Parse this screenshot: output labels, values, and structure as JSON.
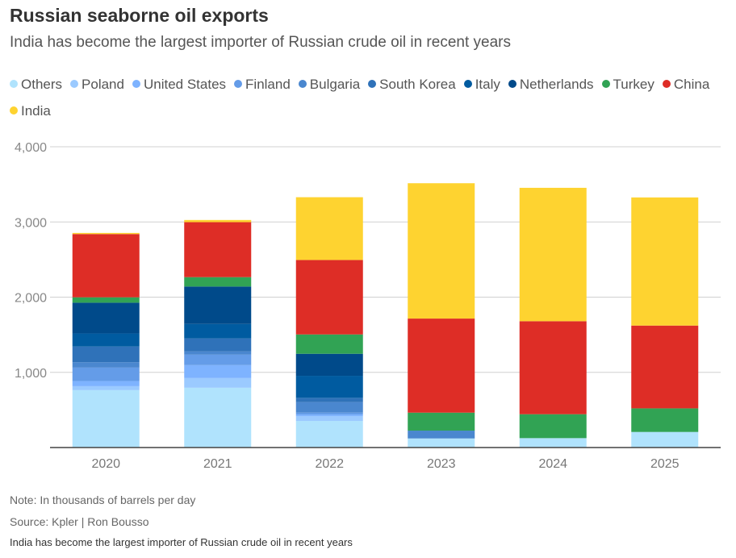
{
  "header": {
    "title": "Russian seaborne oil exports",
    "subtitle": "India has become the largest importer of Russian crude oil in recent years"
  },
  "footer": {
    "note": "Note: In thousands of barrels per day",
    "source": "Source: Kpler | Ron Bousso",
    "caption": "India has become the largest importer of Russian crude oil in recent years"
  },
  "chart_data": {
    "type": "bar",
    "stacked": true,
    "title": "Russian seaborne oil exports",
    "subtitle": "India has become the largest importer of Russian crude oil in recent years",
    "ylim": [
      0,
      4000
    ],
    "yticks": [
      "1,000",
      "2,000",
      "3,000",
      "4,000"
    ],
    "ytick_values": [
      1000,
      2000,
      3000,
      4000
    ],
    "grid": true,
    "legend_position": "top",
    "categories": [
      "2020",
      "2021",
      "2022",
      "2023",
      "2024",
      "2025"
    ],
    "series": [
      {
        "name": "Others",
        "color": "#b0e3fd",
        "values": [
          763,
          795,
          354,
          121,
          125,
          207
        ]
      },
      {
        "name": "Poland",
        "color": "#9bcaff",
        "values": [
          53,
          129,
          64,
          0,
          0,
          0
        ]
      },
      {
        "name": "United States",
        "color": "#7eb3ff",
        "values": [
          68,
          172,
          21,
          0,
          0,
          0
        ]
      },
      {
        "name": "Finland",
        "color": "#649ce8",
        "values": [
          179,
          139,
          25,
          0,
          0,
          0
        ]
      },
      {
        "name": "Bulgaria",
        "color": "#4a87cf",
        "values": [
          72,
          43,
          139,
          104,
          0,
          0
        ]
      },
      {
        "name": "South Korea",
        "color": "#2f72b9",
        "values": [
          208,
          172,
          58,
          0,
          0,
          0
        ]
      },
      {
        "name": "Italy",
        "color": "#005ba0",
        "values": [
          175,
          193,
          293,
          0,
          0,
          0
        ]
      },
      {
        "name": "Netherlands",
        "color": "#004a8a",
        "values": [
          408,
          498,
          293,
          0,
          0,
          0
        ]
      },
      {
        "name": "Turkey",
        "color": "#31a354",
        "values": [
          72,
          125,
          257,
          239,
          318,
          314
        ]
      },
      {
        "name": "China",
        "color": "#de2d26",
        "values": [
          841,
          731,
          990,
          1251,
          1237,
          1101
        ]
      },
      {
        "name": "India",
        "color": "#fed330",
        "values": [
          15,
          29,
          835,
          1800,
          1774,
          1704
        ]
      }
    ]
  }
}
